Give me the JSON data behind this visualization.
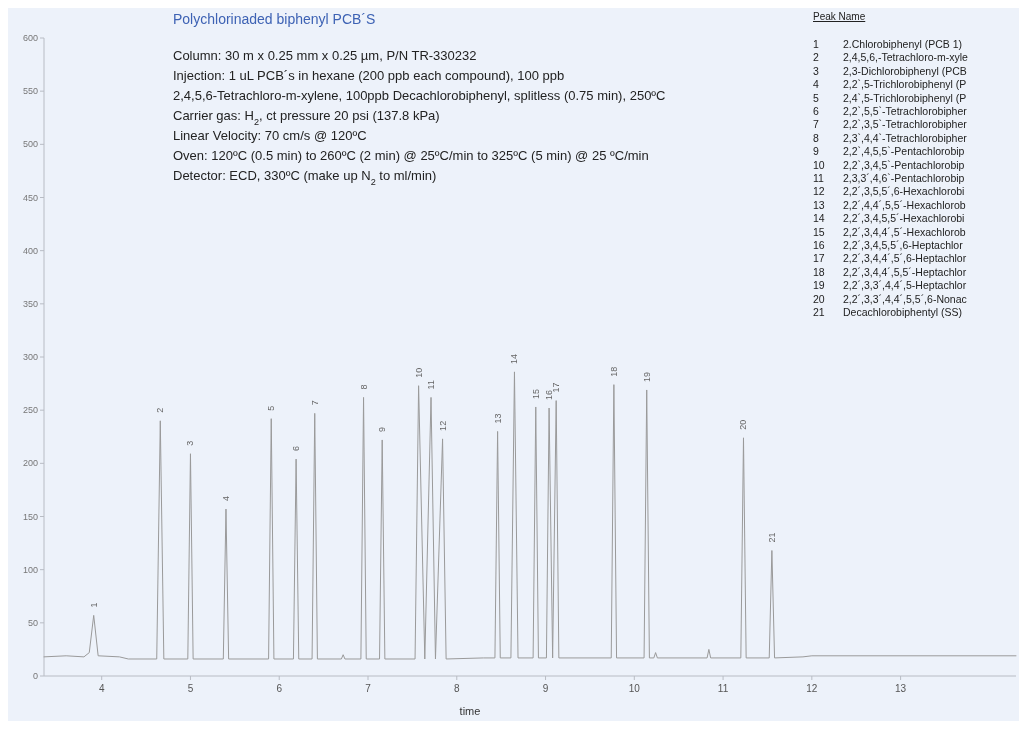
{
  "chart_data": {
    "type": "line",
    "title": "Polychlorinaded biphenyl PCB´S",
    "xlabel": "time",
    "x": [
      3.35,
      3.6,
      3.8,
      3.86,
      3.91,
      3.96,
      4.2,
      4.3,
      4.62,
      4.66,
      4.7,
      4.97,
      5.0,
      5.03,
      5.37,
      5.4,
      5.43,
      5.88,
      5.91,
      5.94,
      6.16,
      6.19,
      6.22,
      6.37,
      6.4,
      6.43,
      6.7,
      6.72,
      6.74,
      6.92,
      6.95,
      6.98,
      7.13,
      7.16,
      7.19,
      7.53,
      7.57,
      7.64,
      7.71,
      7.76,
      7.84,
      7.88,
      8.3,
      8.43,
      8.46,
      8.49,
      8.61,
      8.65,
      8.69,
      8.86,
      8.89,
      8.92,
      9.01,
      9.04,
      9.08,
      9.12,
      9.15,
      9.74,
      9.77,
      9.8,
      10.11,
      10.14,
      10.17,
      10.22,
      10.24,
      10.26,
      10.82,
      10.84,
      10.86,
      11.2,
      11.23,
      11.26,
      11.52,
      11.55,
      11.58,
      11.9,
      12.0,
      14.3
    ],
    "series": [
      {
        "color": "#9a9a9a",
        "values": [
          18,
          19,
          18,
          22,
          57,
          19,
          18,
          16,
          16,
          240,
          16,
          16,
          209,
          16,
          16,
          157,
          16,
          16,
          242,
          16,
          16,
          204,
          16,
          16,
          247,
          16,
          16,
          20,
          16,
          16,
          262,
          16,
          16,
          222,
          16,
          16,
          273,
          16,
          262,
          16,
          223,
          16,
          17,
          17,
          230,
          17,
          17,
          286,
          17,
          17,
          253,
          17,
          17,
          252,
          17,
          259,
          17,
          17,
          274,
          17,
          17,
          269,
          17,
          17,
          22,
          17,
          17,
          25,
          17,
          17,
          224,
          17,
          17,
          118,
          17,
          18,
          19,
          19
        ]
      }
    ],
    "xlim": [
      3.35,
      14.3
    ],
    "xticks": [
      4,
      5,
      6,
      7,
      8,
      9,
      10,
      11,
      12,
      13
    ],
    "ylim": [
      0,
      600
    ],
    "yticks": [
      0,
      50,
      100,
      150,
      200,
      250,
      300,
      350,
      400,
      450,
      500,
      550,
      600
    ],
    "grid": false,
    "marker": "none",
    "line_style": "solid",
    "annotations": [
      "Column: 30 m x 0.25 mm x 0.25 µm, P/N TR-330232",
      "Injection: 1 uL PCB´s in hexane (200 ppb each compound), 100 ppb",
      "2,4,5,6-Tetrachloro-m-xylene, 100ppb Decachlorobiphenyl, splitless (0.75 min), 250ºC",
      "Carrier gas: H$_{2}$, ct pressure 20 psi (137.8 kPa)",
      "Linear Velocity: 70 cm/s @ 120ºC",
      "Oven: 120ºC (0.5 min) to 260ºC (2 min) @ 25ºC/min to 325ºC (5 min) @ 25 ºC/min",
      "Detector: ECD, 330ºC (make up N$_{2}$ to ml/min)",
      "Peak Name",
      "1 2.Chlorobiphenyl (PCB 1)",
      "2 2,4,5,6,-Tetrachloro-m-xyle",
      "3 2,3-Dichlorobiphenyl (PCB",
      "4 2,2`,5-Trichlorobiphenyl (P",
      "5 2,4`,5-Trichlorobiphenyl (P",
      "6 2,2`,5,5`-Tetrachlorobipher",
      "7 2,2`,3,5`-Tetrachlorobipher",
      "8 2,3`,4,4`-Tetrachlorobipher",
      "9 2,2`,4,5,5`-Pentachlorobip",
      "10 2,2`,3,4,5`-Pentachlorobip",
      "11 2,3,3´,4,6`-Pentachlorobip",
      "12 2,2´,3,5,5´,6-Hexachlorobi",
      "13 2,2´,4,4´,5,5´-Hexachlorob",
      "14 2,2´,3,4,5,5´-Hexachlorobi",
      "15 2,2´,3,4,4´,5´-Hexachlorob",
      "16 2,2´,3,4,5,5´,6-Heptachlor",
      "17 2,2´,3,4,4´,5´,6-Heptachlor",
      "18 2,2´,3,4,4´,5,5´-Heptachlor",
      "19 2,2´,3,3´,4,4´,5-Heptachlor",
      "20 2,2´,3,3´,4,4´,5,5´,6-Nonac",
      "21 Decachlorobiphentyl (SS)",
      {
        "text": "1",
        "x": 3.91,
        "y": 57
      },
      {
        "text": "2",
        "x": 4.66,
        "y": 240
      },
      {
        "text": "3",
        "x": 5.0,
        "y": 209
      },
      {
        "text": "4",
        "x": 5.4,
        "y": 157
      },
      {
        "text": "5",
        "x": 5.91,
        "y": 242
      },
      {
        "text": "6",
        "x": 6.19,
        "y": 204
      },
      {
        "text": "7",
        "x": 6.4,
        "y": 247
      },
      {
        "text": "8",
        "x": 6.95,
        "y": 262
      },
      {
        "text": "9",
        "x": 7.16,
        "y": 222
      },
      {
        "text": "10",
        "x": 7.57,
        "y": 273
      },
      {
        "text": "11",
        "x": 7.71,
        "y": 262
      },
      {
        "text": "12",
        "x": 7.84,
        "y": 223
      },
      {
        "text": "13",
        "x": 8.46,
        "y": 230
      },
      {
        "text": "14",
        "x": 8.65,
        "y": 286
      },
      {
        "text": "15",
        "x": 8.89,
        "y": 253
      },
      {
        "text": "16",
        "x": 9.04,
        "y": 252
      },
      {
        "text": "17",
        "x": 9.12,
        "y": 259
      },
      {
        "text": "18",
        "x": 9.77,
        "y": 274
      },
      {
        "text": "19",
        "x": 10.14,
        "y": 269
      },
      {
        "text": "20",
        "x": 11.23,
        "y": 224
      },
      {
        "text": "21",
        "x": 11.55,
        "y": 118
      }
    ]
  }
}
